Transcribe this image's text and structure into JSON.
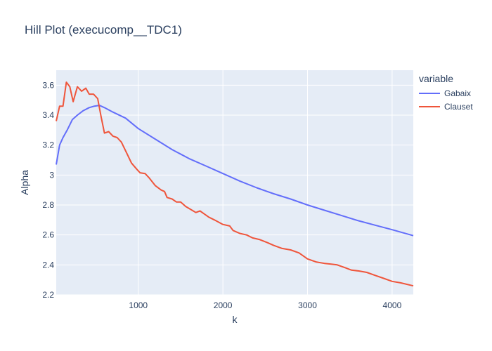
{
  "chart_data": {
    "type": "line",
    "title": "Hill Plot (execucomp__TDC1)",
    "xlabel": "k",
    "ylabel": "Alpha",
    "xlim": [
      30,
      4250
    ],
    "ylim": [
      2.2,
      3.7
    ],
    "x_ticks": [
      1000,
      2000,
      3000,
      4000
    ],
    "x_tick_labels": [
      "1000",
      "2000",
      "3000",
      "4000"
    ],
    "y_ticks": [
      2.2,
      2.4,
      2.6,
      2.8,
      3.0,
      3.2,
      3.4,
      3.6
    ],
    "y_tick_labels": [
      "2.2",
      "2.4",
      "2.6",
      "2.8",
      "3",
      "3.2",
      "3.4",
      "3.6"
    ],
    "grid": true,
    "legend_title": "variable",
    "legend_position": "right",
    "series": [
      {
        "name": "Gabaix",
        "color": "#636efa",
        "points": [
          [
            30,
            3.07
          ],
          [
            70,
            3.2
          ],
          [
            110,
            3.25
          ],
          [
            160,
            3.3
          ],
          [
            220,
            3.37
          ],
          [
            280,
            3.4
          ],
          [
            350,
            3.43
          ],
          [
            420,
            3.45
          ],
          [
            480,
            3.46
          ],
          [
            540,
            3.465
          ],
          [
            600,
            3.45
          ],
          [
            700,
            3.42
          ],
          [
            850,
            3.38
          ],
          [
            1000,
            3.31
          ],
          [
            1200,
            3.24
          ],
          [
            1400,
            3.17
          ],
          [
            1600,
            3.11
          ],
          [
            1800,
            3.06
          ],
          [
            2000,
            3.01
          ],
          [
            2200,
            2.96
          ],
          [
            2400,
            2.915
          ],
          [
            2600,
            2.875
          ],
          [
            2800,
            2.84
          ],
          [
            3000,
            2.8
          ],
          [
            3200,
            2.765
          ],
          [
            3400,
            2.73
          ],
          [
            3600,
            2.695
          ],
          [
            3800,
            2.665
          ],
          [
            4000,
            2.635
          ],
          [
            4250,
            2.595
          ]
        ]
      },
      {
        "name": "Clauset",
        "color": "#ef553b",
        "points": [
          [
            30,
            3.36
          ],
          [
            70,
            3.46
          ],
          [
            110,
            3.46
          ],
          [
            150,
            3.62
          ],
          [
            190,
            3.59
          ],
          [
            230,
            3.49
          ],
          [
            280,
            3.59
          ],
          [
            330,
            3.56
          ],
          [
            380,
            3.58
          ],
          [
            420,
            3.54
          ],
          [
            470,
            3.54
          ],
          [
            520,
            3.51
          ],
          [
            560,
            3.39
          ],
          [
            600,
            3.28
          ],
          [
            650,
            3.29
          ],
          [
            700,
            3.26
          ],
          [
            750,
            3.25
          ],
          [
            800,
            3.22
          ],
          [
            860,
            3.15
          ],
          [
            920,
            3.08
          ],
          [
            980,
            3.04
          ],
          [
            1020,
            3.015
          ],
          [
            1080,
            3.01
          ],
          [
            1130,
            2.98
          ],
          [
            1200,
            2.93
          ],
          [
            1270,
            2.9
          ],
          [
            1310,
            2.89
          ],
          [
            1340,
            2.85
          ],
          [
            1400,
            2.84
          ],
          [
            1450,
            2.82
          ],
          [
            1500,
            2.82
          ],
          [
            1560,
            2.79
          ],
          [
            1620,
            2.77
          ],
          [
            1680,
            2.75
          ],
          [
            1730,
            2.76
          ],
          [
            1780,
            2.74
          ],
          [
            1830,
            2.72
          ],
          [
            1900,
            2.7
          ],
          [
            2000,
            2.67
          ],
          [
            2080,
            2.66
          ],
          [
            2120,
            2.63
          ],
          [
            2200,
            2.61
          ],
          [
            2280,
            2.6
          ],
          [
            2350,
            2.58
          ],
          [
            2430,
            2.57
          ],
          [
            2520,
            2.55
          ],
          [
            2600,
            2.53
          ],
          [
            2700,
            2.51
          ],
          [
            2800,
            2.5
          ],
          [
            2900,
            2.48
          ],
          [
            3000,
            2.44
          ],
          [
            3100,
            2.42
          ],
          [
            3200,
            2.41
          ],
          [
            3280,
            2.405
          ],
          [
            3350,
            2.4
          ],
          [
            3450,
            2.38
          ],
          [
            3520,
            2.365
          ],
          [
            3600,
            2.36
          ],
          [
            3700,
            2.35
          ],
          [
            3800,
            2.33
          ],
          [
            3900,
            2.31
          ],
          [
            4000,
            2.29
          ],
          [
            4100,
            2.28
          ],
          [
            4250,
            2.26
          ]
        ]
      }
    ]
  }
}
